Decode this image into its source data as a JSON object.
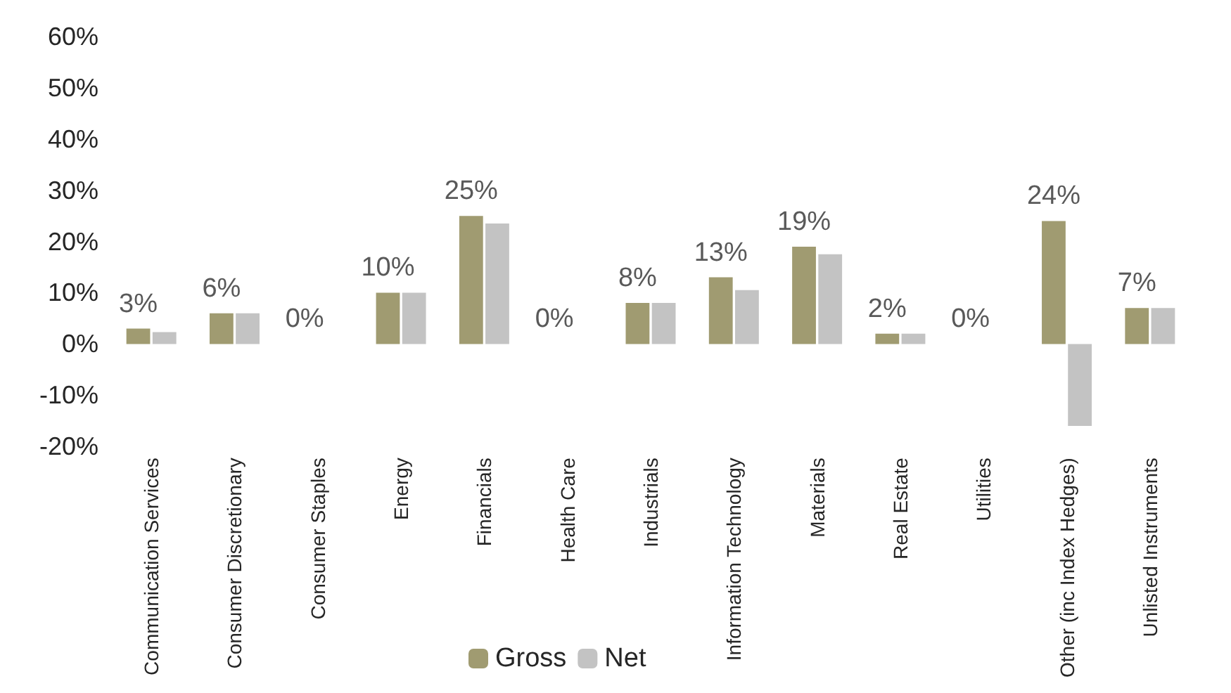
{
  "chart_data": {
    "type": "bar",
    "categories": [
      "Communication Services",
      "Consumer Discretionary",
      "Consumer Staples",
      "Energy",
      "Financials",
      "Health Care",
      "Industrials",
      "Information Technology",
      "Materials",
      "Real Estate",
      "Utilities",
      "Other (inc Index Hedges)",
      "Unlisted Instruments"
    ],
    "series": [
      {
        "name": "Gross",
        "color": "#a09b71",
        "values": [
          3,
          6,
          0,
          10,
          25,
          0,
          8,
          13,
          19,
          2,
          0,
          24,
          7
        ],
        "value_labels": [
          "3%",
          "6%",
          "0%",
          "10%",
          "25%",
          "0%",
          "8%",
          "13%",
          "19%",
          "2%",
          "0%",
          "24%",
          "7%"
        ]
      },
      {
        "name": "Net",
        "color": "#c3c3c3",
        "values": [
          2.3,
          6,
          0,
          10,
          23.5,
          0,
          8,
          10.5,
          17.5,
          2,
          0,
          -16,
          7
        ]
      }
    ],
    "ylim": [
      -20,
      60
    ],
    "yticks": [
      {
        "value": -20,
        "label": "-20%"
      },
      {
        "value": -10,
        "label": "-10%"
      },
      {
        "value": 0,
        "label": "0%"
      },
      {
        "value": 10,
        "label": "10%"
      },
      {
        "value": 20,
        "label": "20%"
      },
      {
        "value": 30,
        "label": "30%"
      },
      {
        "value": 40,
        "label": "40%"
      },
      {
        "value": 50,
        "label": "50%"
      },
      {
        "value": 60,
        "label": "60%"
      }
    ],
    "grid": false,
    "legend": "bottom"
  }
}
